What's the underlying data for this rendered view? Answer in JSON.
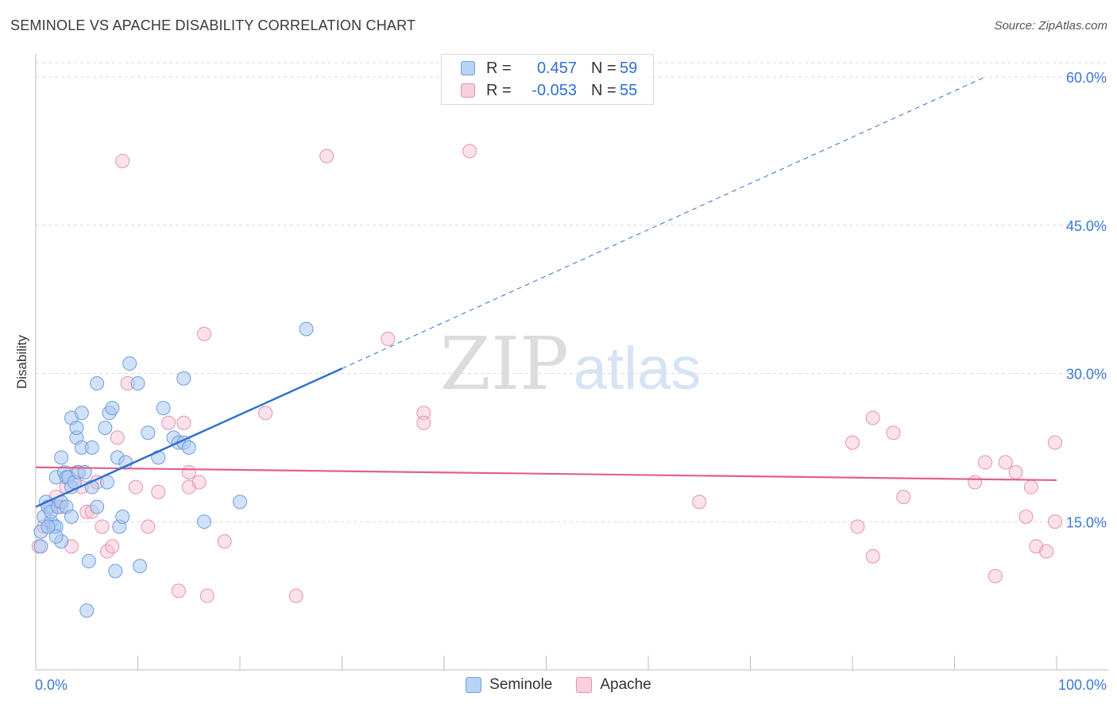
{
  "title": "SEMINOLE VS APACHE DISABILITY CORRELATION CHART",
  "source": "Source: ZipAtlas.com",
  "watermark": {
    "zip": "ZIP",
    "atlas": "atlas"
  },
  "colors": {
    "seminole_fill": "#a9c8f3",
    "seminole_stroke": "#6d9de0",
    "seminole_line": "#2c6fcf",
    "apache_fill": "#f7bfd0",
    "apache_stroke": "#e891ad",
    "apache_line": "#e0608a",
    "axis_value": "#3a78d4",
    "grid": "#d8d8d8"
  },
  "legend": {
    "rows": [
      {
        "r_label": "R =",
        "r_value": "0.457",
        "n_label": "N =",
        "n_value": "59"
      },
      {
        "r_label": "R =",
        "r_value": "-0.053",
        "n_label": "N =",
        "n_value": "55"
      }
    ]
  },
  "bottom_legend": {
    "seminole": "Seminole",
    "apache": "Apache"
  },
  "chart_data": {
    "type": "scatter",
    "title": "SEMINOLE VS APACHE DISABILITY CORRELATION CHART",
    "xlabel": "",
    "ylabel": "Disability",
    "xlim": [
      0,
      100
    ],
    "ylim": [
      0,
      60
    ],
    "x_tick_labels": [
      "0.0%",
      "100.0%"
    ],
    "y_ticks": [
      15,
      30,
      45,
      60
    ],
    "y_tick_labels": [
      "15.0%",
      "30.0%",
      "45.0%",
      "60.0%"
    ],
    "grid": true,
    "legend_position": "top-center",
    "series": [
      {
        "name": "Seminole",
        "r": 0.457,
        "n": 59,
        "trend": {
          "x": [
            0,
            30
          ],
          "y": [
            16.5,
            30.5
          ],
          "dashed_extension_to": [
            93,
            60
          ]
        },
        "points": [
          [
            0.5,
            12.5
          ],
          [
            0.5,
            14
          ],
          [
            0.8,
            15.5
          ],
          [
            1,
            17
          ],
          [
            1.2,
            16.5
          ],
          [
            1.5,
            15
          ],
          [
            1.5,
            16
          ],
          [
            1.8,
            14.5
          ],
          [
            2,
            14.5
          ],
          [
            2,
            19.5
          ],
          [
            2.2,
            16.5
          ],
          [
            2.5,
            13
          ],
          [
            2.5,
            17
          ],
          [
            2.5,
            21.5
          ],
          [
            2.8,
            20
          ],
          [
            3,
            19.5
          ],
          [
            3,
            16.5
          ],
          [
            3.2,
            19.5
          ],
          [
            3.5,
            18.5
          ],
          [
            3.5,
            25.5
          ],
          [
            3.5,
            15.5
          ],
          [
            3.8,
            19
          ],
          [
            4,
            23.5
          ],
          [
            4,
            24.5
          ],
          [
            4.2,
            20
          ],
          [
            4.5,
            22.5
          ],
          [
            4.5,
            26
          ],
          [
            4.8,
            20
          ],
          [
            5,
            6
          ],
          [
            5.2,
            11
          ],
          [
            5.5,
            22.5
          ],
          [
            5.5,
            18.5
          ],
          [
            6,
            16.5
          ],
          [
            6,
            29
          ],
          [
            6.8,
            24.5
          ],
          [
            7,
            19
          ],
          [
            7.2,
            26
          ],
          [
            7.5,
            26.5
          ],
          [
            7.8,
            10
          ],
          [
            8,
            21.5
          ],
          [
            8.2,
            14.5
          ],
          [
            8.5,
            15.5
          ],
          [
            8.8,
            21
          ],
          [
            9.2,
            31
          ],
          [
            10,
            29
          ],
          [
            10.2,
            10.5
          ],
          [
            11,
            24
          ],
          [
            12,
            21.5
          ],
          [
            12.5,
            26.5
          ],
          [
            13.5,
            23.5
          ],
          [
            14,
            23
          ],
          [
            14.5,
            23
          ],
          [
            14.5,
            29.5
          ],
          [
            15,
            22.5
          ],
          [
            16.5,
            15
          ],
          [
            20,
            17
          ],
          [
            26.5,
            34.5
          ],
          [
            2,
            13.5
          ],
          [
            1.2,
            14.5
          ]
        ]
      },
      {
        "name": "Apache",
        "r": -0.053,
        "n": 55,
        "trend": {
          "x": [
            0,
            100
          ],
          "y": [
            20.5,
            19.2
          ]
        },
        "points": [
          [
            0.3,
            12.5
          ],
          [
            0.8,
            14.5
          ],
          [
            1.5,
            16.5
          ],
          [
            2,
            17.5
          ],
          [
            2.5,
            16.5
          ],
          [
            3,
            18.5
          ],
          [
            3.5,
            12.5
          ],
          [
            4,
            20
          ],
          [
            4.5,
            18.5
          ],
          [
            5,
            16
          ],
          [
            5.5,
            16
          ],
          [
            6,
            19
          ],
          [
            6.5,
            14.5
          ],
          [
            7,
            12
          ],
          [
            7.5,
            12.5
          ],
          [
            8,
            23.5
          ],
          [
            8.5,
            51.5
          ],
          [
            9,
            29
          ],
          [
            9.8,
            18.5
          ],
          [
            11,
            14.5
          ],
          [
            12,
            18
          ],
          [
            13,
            25
          ],
          [
            14,
            8
          ],
          [
            14.5,
            25
          ],
          [
            15,
            20
          ],
          [
            15,
            18.5
          ],
          [
            16,
            19
          ],
          [
            16.5,
            34
          ],
          [
            16.8,
            7.5
          ],
          [
            18.5,
            13
          ],
          [
            22.5,
            26
          ],
          [
            25.5,
            7.5
          ],
          [
            28.5,
            52
          ],
          [
            34.5,
            33.5
          ],
          [
            38,
            26
          ],
          [
            38,
            25
          ],
          [
            42.5,
            52.5
          ],
          [
            65,
            17
          ],
          [
            80,
            23
          ],
          [
            80.5,
            14.5
          ],
          [
            82,
            25.5
          ],
          [
            82,
            11.5
          ],
          [
            84,
            24
          ],
          [
            85,
            17.5
          ],
          [
            92,
            19
          ],
          [
            93,
            21
          ],
          [
            94,
            9.5
          ],
          [
            95,
            21
          ],
          [
            96,
            20
          ],
          [
            97,
            15.5
          ],
          [
            97.5,
            18.5
          ],
          [
            98,
            12.5
          ],
          [
            99,
            12
          ],
          [
            102,
            15
          ],
          [
            103,
            23
          ]
        ]
      }
    ]
  }
}
